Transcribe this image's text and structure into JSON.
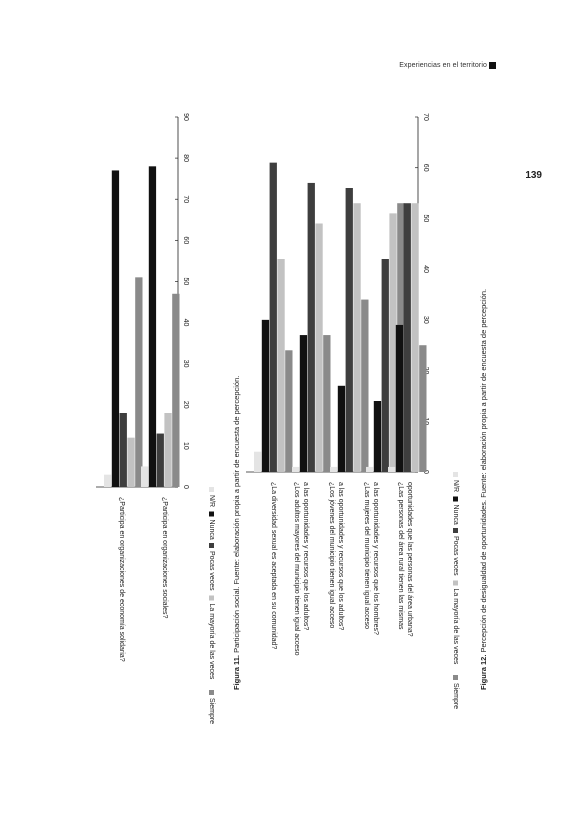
{
  "header": {
    "running_title": "Experiencias en el territorio"
  },
  "page_number": "139",
  "chart_data": [
    {
      "type": "bar",
      "categories": [
        "¿Participa en organizaciones de economía solidaria?",
        "¿Participa en organizaciones sociales?"
      ],
      "series": [
        {
          "name": "N/R",
          "values": [
            3,
            5
          ]
        },
        {
          "name": "Nunca",
          "values": [
            77,
            78
          ]
        },
        {
          "name": "Pocas veces",
          "values": [
            18,
            13
          ]
        },
        {
          "name": "La mayoría de las veces",
          "values": [
            12,
            18
          ]
        },
        {
          "name": "Siempre",
          "values": [
            51,
            47
          ]
        }
      ],
      "ylim": [
        0,
        90
      ],
      "yticks": [
        0,
        10,
        20,
        30,
        40,
        50,
        60,
        70,
        80,
        90
      ],
      "caption_label": "Figura 11.",
      "caption_text": "Participación social. Fuente: elaboración propia a partir de encuesta de percepción.",
      "legend_position": "bottom"
    },
    {
      "type": "bar",
      "categories": [
        [
          "¿La diversidad sexual es aceptada en su comunidad?"
        ],
        [
          "¿Los adultos mayores del municipio tienen igual acceso",
          "a las oportunidades y recursos que los adultos?"
        ],
        [
          "¿Los jóvenes del municipio tienen igual acceso",
          "a las oportunidades y recursos que los adultos?"
        ],
        [
          "¿Las mujeres del municipio tienen igual acceso",
          "a las oportunidades y recursos que los hombres?"
        ],
        [
          "¿Las personas del área rural tienen las mismas",
          "oportunidades que las personas del área urbana?"
        ]
      ],
      "series": [
        {
          "name": "N/R",
          "values": [
            4,
            1,
            1,
            1,
            1
          ]
        },
        {
          "name": "Nunca",
          "values": [
            30,
            27,
            17,
            14,
            29
          ]
        },
        {
          "name": "Pocas veces",
          "values": [
            61,
            57,
            56,
            42,
            53
          ]
        },
        {
          "name": "La mayoría de las veces",
          "values": [
            42,
            49,
            53,
            51,
            53
          ]
        },
        {
          "name": "Siempre",
          "values": [
            24,
            27,
            34,
            53,
            25
          ]
        }
      ],
      "ylim": [
        0,
        70
      ],
      "yticks": [
        0,
        10,
        20,
        30,
        40,
        50,
        60,
        70
      ],
      "caption_label": "Figura 12.",
      "caption_text": "Percepción de desigualdad de oportunidades. Fuente: elaboración propia a partir de encuesta de percepción.",
      "legend_position": "bottom"
    }
  ],
  "colors": {
    "N/R": "#e4e4e4",
    "Nunca": "#111111",
    "Pocas veces": "#3e3e3e",
    "La mayoría de las veces": "#c2c2c2",
    "Siempre": "#8a8a8a"
  }
}
